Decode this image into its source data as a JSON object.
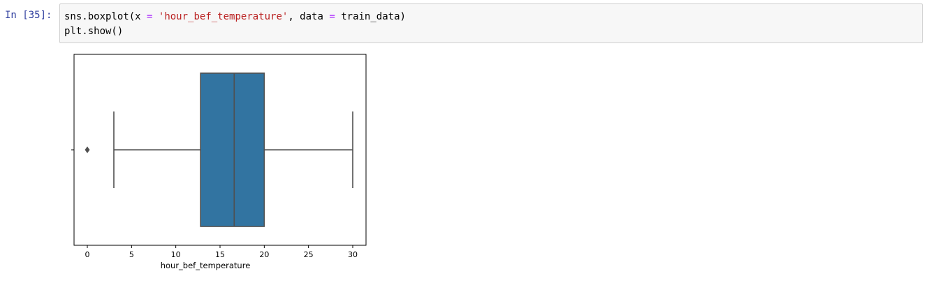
{
  "cell": {
    "prompt": "In [35]:",
    "code_line1": {
      "pre": "sns.boxplot(x ",
      "eq1": "=",
      "mid1": " ",
      "str": "'hour_bef_temperature'",
      "mid2": ", data ",
      "eq2": "=",
      "post": " train_data)"
    },
    "code_line2": "plt.show()"
  },
  "chart_data": {
    "type": "boxplot",
    "xlabel": "hour_bef_temperature",
    "ylabel": "",
    "xlim": [
      -1.5,
      31.5
    ],
    "xticks": [
      0,
      5,
      10,
      15,
      20,
      25,
      30
    ],
    "box": {
      "whisker_low": 3.0,
      "q1": 12.8,
      "median": 16.6,
      "q3": 20.0,
      "whisker_high": 30.0
    },
    "outliers": [
      0.0
    ],
    "box_color": "#3274a1",
    "line_color": "#4f4f4f"
  }
}
